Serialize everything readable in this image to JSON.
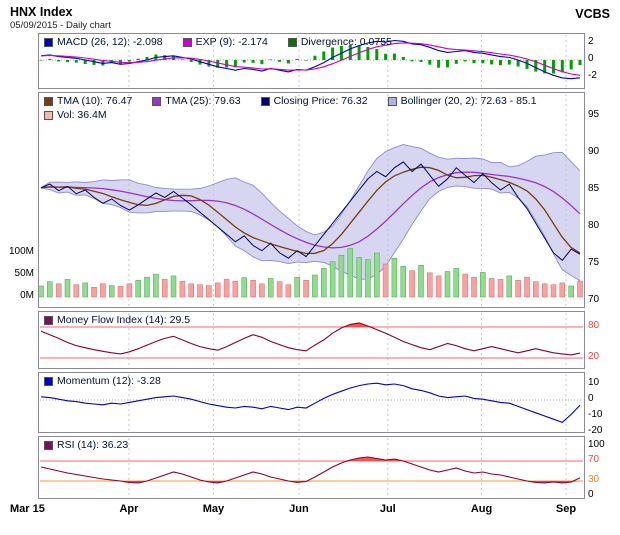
{
  "header": {
    "title": "HNX Index",
    "subtitle": "05/09/2015 - Daily chart",
    "brand": "VCBS"
  },
  "x_axis": {
    "labels": [
      {
        "label": "Mar 15",
        "f": 0
      },
      {
        "label": "Apr",
        "f": 0.165
      },
      {
        "label": "May",
        "f": 0.32
      },
      {
        "label": "Jun",
        "f": 0.477
      },
      {
        "label": "Jul",
        "f": 0.64
      },
      {
        "label": "Aug",
        "f": 0.812
      },
      {
        "label": "Sep",
        "f": 0.967
      }
    ]
  },
  "chart_data": [
    {
      "id": "macd",
      "type": "line+bar",
      "title": "MACD indicator panel",
      "legend": [
        {
          "label": "MACD (26, 12): -2.098",
          "color": "#0000cc"
        },
        {
          "label": "EXP (9): -2.174",
          "color": "#cc00cc"
        },
        {
          "label": "Divergence: 0.0755",
          "color": "#007700"
        }
      ],
      "yticks": [
        {
          "v": 2,
          "label": "2"
        },
        {
          "v": 0,
          "label": "0"
        },
        {
          "v": -2,
          "label": "-2"
        }
      ],
      "ylim": [
        -2.8,
        2.8
      ],
      "colors": {
        "macd": "#0000cc",
        "exp": "#cc00cc",
        "divergence": "#00a000"
      },
      "series": {
        "macd": [
          0.5,
          0.6,
          0.4,
          0.3,
          0.2,
          0.0,
          -0.2,
          -0.4,
          -0.3,
          -0.5,
          -0.4,
          -0.2,
          0.0,
          0.3,
          0.4,
          0.5,
          0.3,
          0.1,
          -0.2,
          -0.5,
          -0.8,
          -1.0,
          -1.2,
          -1.0,
          -1.1,
          -1.3,
          -1.0,
          -1.2,
          -1.4,
          -1.1,
          -1.2,
          -0.8,
          -0.3,
          0.3,
          0.8,
          1.3,
          1.7,
          2.0,
          2.2,
          2.1,
          2.3,
          2.2,
          1.9,
          1.8,
          1.5,
          1.1,
          0.9,
          1.0,
          1.1,
          0.9,
          0.8,
          0.6,
          0.4,
          0.3,
          0.0,
          -0.4,
          -0.9,
          -1.4,
          -1.8,
          -2.1,
          -2.2,
          -2.098
        ]
      }
    },
    {
      "id": "price",
      "type": "line+bar",
      "title": "HNX Index price with TMA, Bollinger and volume",
      "legend": [
        {
          "label": "TMA (10): 76.47",
          "color": "#7a3b10"
        },
        {
          "label": "TMA (25): 79.63",
          "color": "#9933cc"
        },
        {
          "label": "Closing Price: 76.32",
          "color": "#000066"
        },
        {
          "label": "Bollinger (20, 2): 72.63 - 85.1",
          "color": "#aab4ee"
        },
        {
          "label": "Vol: 36.4M",
          "color": "#ffb4ac",
          "row": 2
        }
      ],
      "yticks": [
        {
          "v": 95,
          "label": "95"
        },
        {
          "v": 90,
          "label": "90"
        },
        {
          "v": 85,
          "label": "85"
        },
        {
          "v": 80,
          "label": "80"
        },
        {
          "v": 75,
          "label": "75"
        },
        {
          "v": 70,
          "label": "70"
        }
      ],
      "vol_ticks": [
        {
          "v": 100,
          "label": "100M"
        },
        {
          "v": 50,
          "label": "50M"
        },
        {
          "v": 0,
          "label": "0M"
        }
      ],
      "ylim": [
        70,
        95
      ],
      "colors": {
        "tma10": "#7a3b10",
        "tma25": "#9933cc",
        "close": "#000066",
        "band": "#b4b4e6",
        "band_edge": "#8c8cd0",
        "vol_up": "#8fdc8f",
        "vol_down": "#ffa0a0"
      },
      "series": {
        "close": [
          85.3,
          85.8,
          84.9,
          85.5,
          84.5,
          85.0,
          84.0,
          83.2,
          83.8,
          82.9,
          82.3,
          83.0,
          83.8,
          84.6,
          84.0,
          84.8,
          83.9,
          83.0,
          82.0,
          81.0,
          80.0,
          79.0,
          78.0,
          78.8,
          77.5,
          76.8,
          77.8,
          76.5,
          75.8,
          76.8,
          76.0,
          77.5,
          79.0,
          80.5,
          82.0,
          83.5,
          85.0,
          86.5,
          87.5,
          86.8,
          88.0,
          88.8,
          87.5,
          88.5,
          87.0,
          85.5,
          86.5,
          88.0,
          87.0,
          86.0,
          87.2,
          86.0,
          85.0,
          85.8,
          84.0,
          82.5,
          80.5,
          78.5,
          76.5,
          75.5,
          77.0,
          76.32
        ],
        "volume": [
          25,
          35,
          30,
          40,
          28,
          32,
          22,
          30,
          26,
          24,
          30,
          38,
          45,
          52,
          40,
          48,
          36,
          30,
          28,
          26,
          32,
          40,
          36,
          44,
          38,
          30,
          42,
          35,
          28,
          45,
          38,
          50,
          65,
          80,
          95,
          110,
          90,
          85,
          100,
          75,
          88,
          70,
          60,
          72,
          55,
          48,
          58,
          65,
          52,
          45,
          56,
          42,
          40,
          48,
          38,
          45,
          35,
          30,
          28,
          32,
          25,
          36.4
        ]
      }
    },
    {
      "id": "mfi",
      "type": "line",
      "title": "Money Flow Index panel",
      "legend": [
        {
          "label": "Money Flow Index (14): 29.5",
          "color": "#7a1060"
        }
      ],
      "yticks": [
        {
          "v": 80,
          "label": "80",
          "color": "#ee4444"
        },
        {
          "v": 20,
          "label": "20",
          "color": "#ee4444"
        }
      ],
      "thresholds": [
        {
          "v": 80,
          "color": "#ff6666"
        },
        {
          "v": 20,
          "color": "#ff6666"
        }
      ],
      "ylim": [
        0,
        100
      ],
      "colors": {
        "line": "#8b0030",
        "fill_above": "#ff4040"
      },
      "series": {
        "mfi": [
          72,
          65,
          58,
          50,
          44,
          40,
          36,
          33,
          30,
          28,
          32,
          38,
          45,
          52,
          58,
          62,
          55,
          48,
          42,
          38,
          35,
          42,
          50,
          58,
          65,
          60,
          52,
          46,
          40,
          36,
          34,
          45,
          55,
          68,
          78,
          85,
          88,
          82,
          75,
          68,
          60,
          52,
          46,
          40,
          36,
          42,
          48,
          44,
          38,
          34,
          38,
          42,
          38,
          34,
          30,
          34,
          38,
          34,
          30,
          28,
          26,
          29.5
        ]
      }
    },
    {
      "id": "momentum",
      "type": "line",
      "title": "Momentum panel",
      "legend": [
        {
          "label": "Momentum (12): -3.28",
          "color": "#0000cc"
        }
      ],
      "yticks": [
        {
          "v": 10,
          "label": "10"
        },
        {
          "v": 0,
          "label": "0"
        },
        {
          "v": -10,
          "label": "-10"
        },
        {
          "v": -20,
          "label": "-20"
        }
      ],
      "ylim": [
        -20,
        12
      ],
      "colors": {
        "line": "#0000cc"
      },
      "series": {
        "momentum": [
          2,
          1.5,
          0.5,
          -0.5,
          -1,
          -2,
          -2.5,
          -3,
          -2,
          -2.5,
          -1.5,
          -0.5,
          0.5,
          1.5,
          2,
          2.5,
          1.5,
          0.5,
          -1,
          -2.5,
          -3.5,
          -4.5,
          -5,
          -4,
          -4.5,
          -5.5,
          -4,
          -5,
          -6,
          -4.5,
          -5,
          -2,
          1,
          3.5,
          5.5,
          7.5,
          9,
          10,
          10.5,
          9.5,
          10,
          9,
          7,
          6,
          4.5,
          2.5,
          1.5,
          2,
          2.5,
          1,
          0.5,
          -0.5,
          -1.5,
          -2,
          -4,
          -6,
          -8,
          -10,
          -12,
          -14,
          -9,
          -3.28
        ]
      }
    },
    {
      "id": "rsi",
      "type": "line",
      "title": "RSI panel",
      "legend": [
        {
          "label": "RSI (14): 36.23",
          "color": "#7a1060"
        }
      ],
      "yticks": [
        {
          "v": 100,
          "label": "100"
        },
        {
          "v": 70,
          "label": "70",
          "color": "#ee4444"
        },
        {
          "v": 30,
          "label": "30",
          "color": "#ee8822"
        },
        {
          "v": 0,
          "label": "0"
        }
      ],
      "thresholds": [
        {
          "v": 70,
          "color": "#ff6666"
        },
        {
          "v": 30,
          "color": "#ff9944"
        }
      ],
      "ylim": [
        0,
        100
      ],
      "colors": {
        "line": "#8b0030",
        "fill_above": "#ff4040",
        "fill_below": "#5c5cdf"
      },
      "series": {
        "rsi": [
          58,
          54,
          50,
          46,
          43,
          40,
          37,
          34,
          32,
          30,
          27,
          26,
          30,
          36,
          42,
          48,
          44,
          38,
          32,
          28,
          26,
          30,
          36,
          42,
          48,
          44,
          38,
          34,
          30,
          27,
          29,
          38,
          48,
          58,
          66,
          72,
          76,
          78,
          75,
          72,
          74,
          70,
          64,
          58,
          52,
          48,
          52,
          56,
          50,
          46,
          48,
          44,
          42,
          38,
          34,
          30,
          27,
          26,
          28,
          26,
          28,
          36.23
        ]
      }
    }
  ]
}
